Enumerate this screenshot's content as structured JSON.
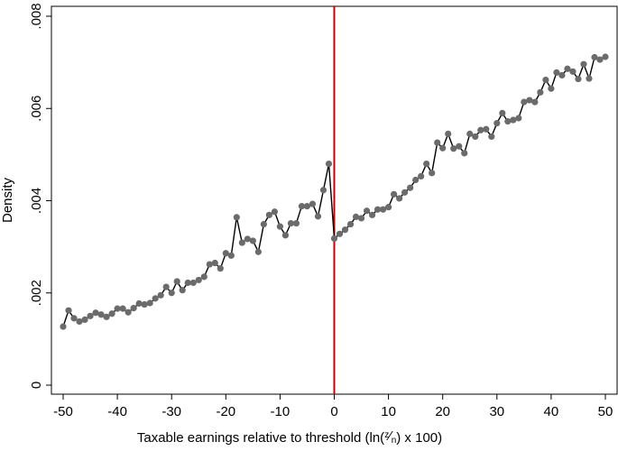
{
  "chart_data": {
    "type": "line",
    "title": "",
    "xlabel": "Taxable earnings relative to threshold (ln(z/n) x 100)",
    "xlabel_parts": {
      "prefix": "Taxable earnings relative to threshold (ln(",
      "num": "z",
      "sep": "⁄",
      "den": "n",
      "suffix": ") x 100)"
    },
    "ylabel": "Density",
    "xlim": [
      -50,
      50
    ],
    "ylim": [
      0,
      0.008
    ],
    "xticks": [
      -50,
      -40,
      -30,
      -20,
      -10,
      0,
      10,
      20,
      30,
      40,
      50
    ],
    "xtick_labels": [
      "-50",
      "-40",
      "-30",
      "-20",
      "-10",
      "0",
      "10",
      "20",
      "30",
      "40",
      "50"
    ],
    "yticks": [
      0,
      0.002,
      0.004,
      0.006,
      0.008
    ],
    "ytick_labels": [
      "0",
      ".002",
      ".004",
      ".006",
      ".008"
    ],
    "grid": false,
    "reference_line": {
      "x": 0,
      "color": "#cc0000"
    },
    "colors": {
      "line": "#000000",
      "marker": "#6b6b6b",
      "axis": "#000000"
    },
    "series": [
      {
        "x": [
          -50,
          -49,
          -48,
          -47,
          -46,
          -45,
          -44,
          -43,
          -42,
          -41,
          -40,
          -39,
          -38,
          -37,
          -36,
          -35,
          -34,
          -33,
          -32,
          -31,
          -30,
          -29,
          -28,
          -27,
          -26,
          -25,
          -24,
          -23,
          -22,
          -21,
          -20,
          -19,
          -18,
          -17,
          -16,
          -15,
          -14,
          -13,
          -12,
          -11,
          -10,
          -9,
          -8,
          -7,
          -6,
          -5,
          -4,
          -3,
          -2,
          -1,
          0,
          1,
          2,
          3,
          4,
          5,
          6,
          7,
          8,
          9,
          10,
          11,
          12,
          13,
          14,
          15,
          16,
          17,
          18,
          19,
          20,
          21,
          22,
          23,
          24,
          25,
          26,
          27,
          28,
          29,
          30,
          31,
          32,
          33,
          34,
          35,
          36,
          37,
          38,
          39,
          40,
          41,
          42,
          43,
          44,
          45,
          46,
          47,
          48,
          49,
          50
        ],
        "values": [
          0.00127,
          0.00162,
          0.00145,
          0.00138,
          0.00142,
          0.0015,
          0.00157,
          0.00153,
          0.00148,
          0.00155,
          0.00166,
          0.00166,
          0.00158,
          0.00167,
          0.00177,
          0.00175,
          0.00178,
          0.00188,
          0.00195,
          0.00213,
          0.002,
          0.00225,
          0.00206,
          0.00222,
          0.00222,
          0.00228,
          0.00235,
          0.00262,
          0.00265,
          0.00253,
          0.00286,
          0.00281,
          0.00364,
          0.00309,
          0.00317,
          0.00313,
          0.00289,
          0.00349,
          0.00369,
          0.00376,
          0.00344,
          0.00325,
          0.00351,
          0.00351,
          0.00388,
          0.00388,
          0.00393,
          0.00366,
          0.00423,
          0.0048,
          0.00318,
          0.00328,
          0.00337,
          0.00349,
          0.00365,
          0.00362,
          0.00378,
          0.00369,
          0.00381,
          0.00381,
          0.00386,
          0.00414,
          0.00405,
          0.00418,
          0.00428,
          0.00445,
          0.00453,
          0.0048,
          0.0046,
          0.00526,
          0.00514,
          0.00545,
          0.00513,
          0.00518,
          0.00503,
          0.00545,
          0.00539,
          0.00553,
          0.00555,
          0.00539,
          0.00568,
          0.0059,
          0.00572,
          0.00575,
          0.00579,
          0.00614,
          0.00618,
          0.00614,
          0.00635,
          0.00662,
          0.00643,
          0.00678,
          0.00672,
          0.00686,
          0.0068,
          0.00664,
          0.00696,
          0.00665,
          0.00711,
          0.00706,
          0.00712
        ]
      }
    ]
  }
}
